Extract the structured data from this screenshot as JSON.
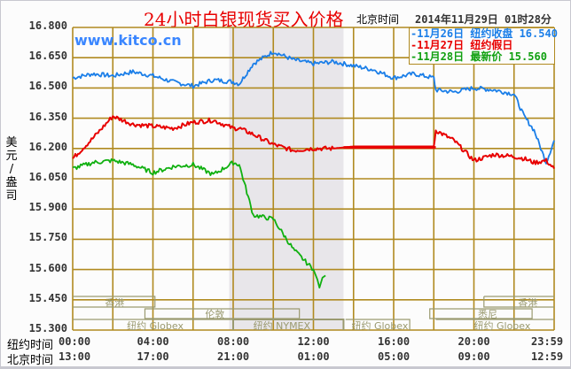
{
  "title": "24小时白银现货买入价格",
  "header": {
    "beijing_time_label": "北京时间",
    "datetime": "2014年11月29日 01时28分"
  },
  "watermark": "www.kitco.cn",
  "y_axis": {
    "label": "美元/盎司",
    "ticks": [
      "16.800",
      "16.650",
      "16.500",
      "16.350",
      "16.200",
      "16.050",
      "15.900",
      "15.750",
      "15.600",
      "15.450",
      "15.300"
    ]
  },
  "legend": [
    {
      "text": "-11月26日 纽约收盘 16.540",
      "color": "#1a7ee8"
    },
    {
      "text": "-11月27日   纽约假日",
      "color": "#e80000"
    },
    {
      "text": "-11月28日   最新价 15.560",
      "color": "#10a010"
    }
  ],
  "x_axis": {
    "ny_label": "纽约时间",
    "bj_label": "北京时间",
    "ny_ticks": [
      "00:00",
      "04:00",
      "08:00",
      "12:00",
      "16:00",
      "20:00",
      "23:59"
    ],
    "bj_ticks": [
      "13:00",
      "17:00",
      "21:00",
      "01:00",
      "05:00",
      "09:00",
      "12:59"
    ]
  },
  "markets": {
    "hongkong": "香港",
    "london": "伦敦",
    "ny_globex": "纽约 Globex",
    "ny_nymex": "纽约 NYMEX",
    "sydney": "悉尼"
  },
  "colors": {
    "grid": "#b08a20",
    "shade": "#e8e6ea",
    "blue": "#1a7ee8",
    "red": "#e80000",
    "green": "#10b010",
    "title": "#e80000"
  },
  "chart_data": {
    "type": "line",
    "title": "24小时白银现货买入价格",
    "xlabel": "纽约时间 / 北京时间",
    "ylabel": "美元/盎司",
    "ylim": [
      15.3,
      16.8
    ],
    "xlim_hours": [
      0,
      24
    ],
    "grid": true,
    "legend_position": "top-right",
    "shaded_region_hours": [
      7.8,
      13.5
    ],
    "x_hours": [
      0,
      1,
      2,
      3,
      4,
      5,
      6,
      7,
      8,
      8.3,
      9,
      10,
      11,
      12,
      13,
      14,
      15,
      16,
      17,
      18,
      18.1,
      19,
      20,
      21,
      22,
      22.5,
      23,
      23.6,
      24
    ],
    "series": [
      {
        "name": "11月26日 纽约收盘 16.540",
        "color": "#1a7ee8",
        "values": [
          16.55,
          16.57,
          16.56,
          16.58,
          16.56,
          16.53,
          16.51,
          16.54,
          16.53,
          16.52,
          16.62,
          16.68,
          16.64,
          16.62,
          16.63,
          16.61,
          16.59,
          16.55,
          16.57,
          16.55,
          16.49,
          16.48,
          16.5,
          16.49,
          16.47,
          16.36,
          16.29,
          16.13,
          16.24
        ]
      },
      {
        "name": "11月27日 纽约假日",
        "color": "#e80000",
        "values": [
          16.15,
          16.25,
          16.36,
          16.32,
          16.31,
          16.3,
          16.33,
          16.34,
          16.3,
          16.3,
          16.27,
          16.22,
          16.19,
          16.2,
          16.2,
          16.21,
          16.21,
          16.21,
          16.21,
          16.21,
          16.29,
          16.24,
          16.14,
          16.17,
          16.16,
          16.15,
          16.13,
          16.14,
          16.1
        ]
      },
      {
        "name": "11月28日 最新价 15.560",
        "color": "#10b010",
        "values": [
          16.1,
          16.13,
          16.14,
          16.12,
          16.08,
          16.11,
          16.12,
          16.07,
          16.13,
          16.12,
          15.87,
          15.85,
          15.7,
          15.6,
          null,
          null,
          null,
          null,
          null,
          null,
          null,
          null,
          null,
          null,
          null,
          null,
          null,
          null,
          null
        ]
      }
    ],
    "series_last_point_note": "green ends at ~12.4h (15.51 dip, last 15.56)"
  }
}
